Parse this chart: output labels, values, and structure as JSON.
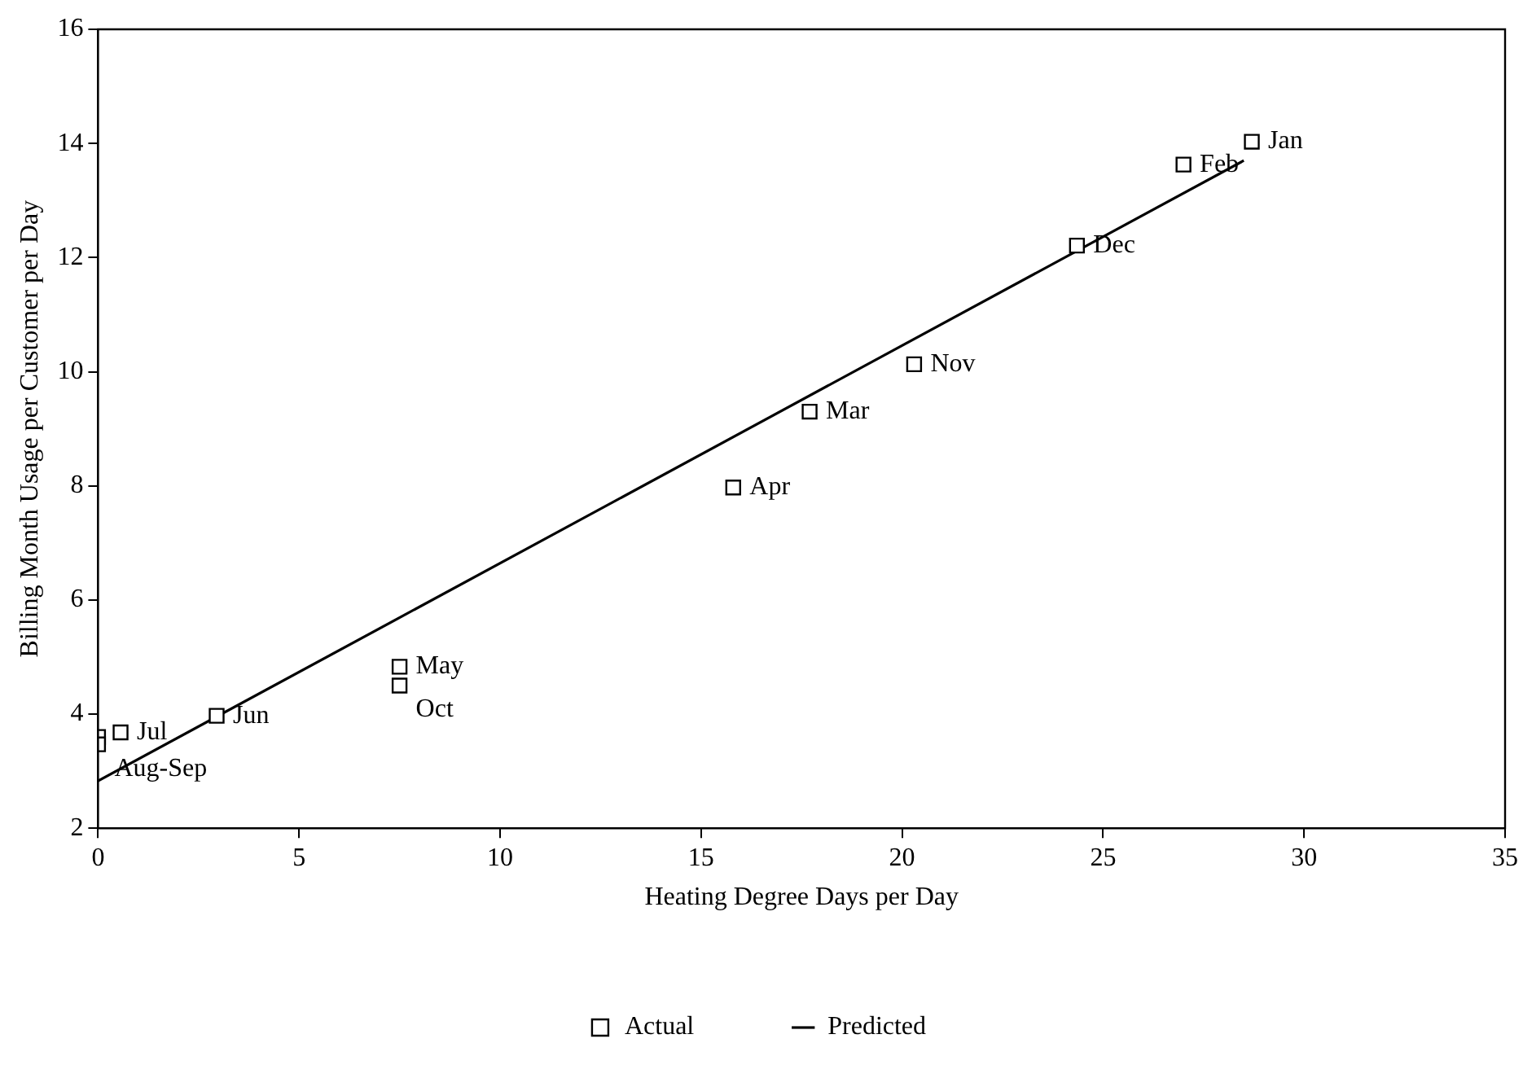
{
  "chart_data": {
    "type": "scatter",
    "xlabel": "Heating Degree Days per Day",
    "ylabel": "Billing Month Usage per Customer per Day",
    "xlim": [
      0,
      35
    ],
    "xticks": [
      0,
      5,
      10,
      15,
      20,
      25,
      30,
      35
    ],
    "ylim": [
      2,
      16
    ],
    "yticks": [
      2,
      4,
      6,
      8,
      10,
      12,
      14,
      16
    ],
    "grid": false,
    "legend": "bottom",
    "series": [
      {
        "name": "Actual",
        "color": "#000000",
        "marker": "square",
        "x": [
          28.7,
          27.0,
          17.7,
          15.8,
          7.5,
          2.95,
          0.56,
          0,
          0,
          7.5,
          20.3,
          24.35
        ],
        "values": [
          14.03,
          13.63,
          9.3,
          7.97,
          4.83,
          3.97,
          3.68,
          3.6,
          3.47,
          4.5,
          10.13,
          12.21
        ],
        "value_labels": [
          "Jan",
          "Feb",
          "Mar",
          "Apr",
          "May",
          "Jun",
          "Jul",
          null,
          "Aug-Sep",
          "Oct",
          "Nov",
          "Dec"
        ]
      },
      {
        "name": "Predicted",
        "type": "line",
        "color": "#000000",
        "marker": "none",
        "line_style": "solid",
        "x": [
          0,
          28.5
        ],
        "values": [
          2.83,
          13.7
        ]
      }
    ]
  }
}
